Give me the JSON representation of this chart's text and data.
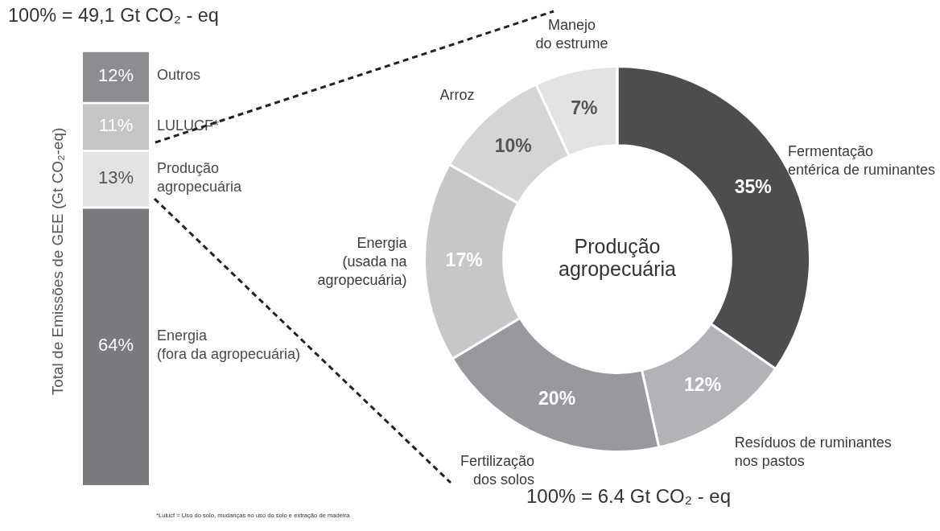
{
  "chart_data": [
    {
      "type": "bar",
      "title": "100% = 49,1 Gt CO₂ - eq",
      "ylabel": "Total de Emissões de GEE (Gt CO₂-eq)",
      "categories": [
        null
      ],
      "stacked": true,
      "series": [
        {
          "name": "Energia\n(fora da agropecuária)",
          "color": "#7a7b7f",
          "values": [
            64
          ],
          "value_labels": [
            "64%"
          ]
        },
        {
          "name": "Produção\nagropecuária",
          "color": "#e2e3e5",
          "values": [
            13
          ],
          "value_labels": [
            "13%"
          ]
        },
        {
          "name": "LULUCF*",
          "color": "#c4c5c7",
          "values": [
            11
          ],
          "value_labels": [
            "11%"
          ]
        },
        {
          "name": "Outros",
          "color": "#8c8d90",
          "values": [
            12
          ],
          "value_labels": [
            "12%"
          ]
        }
      ],
      "annotations": [
        "*Lulucf = Uso do solo, mudanças no uso do solo e extração de madeira"
      ]
    },
    {
      "type": "donut",
      "title": "Produção\nagropecuária",
      "categories": [
        "Fermentação\nentérica de ruminantes",
        "Resíduos de ruminantes\nnos pastos",
        "Fertilização\ndos solos",
        "Energia\n(usada na\nagropecuária)",
        "Arroz",
        "Manejo\ndo estrume"
      ],
      "values": [
        35,
        12,
        20,
        17,
        10,
        7
      ],
      "colors": [
        "#4d4d4f",
        "#b2b3b6",
        "#98999c",
        "#c6c7c9",
        "#d4d5d7",
        "#e2e3e4"
      ],
      "value_labels": [
        "35%",
        "12%",
        "20%",
        "17%",
        "10%",
        "7%"
      ],
      "annotations": [
        "100% = 6.4 Gt CO₂ - eq"
      ]
    }
  ]
}
